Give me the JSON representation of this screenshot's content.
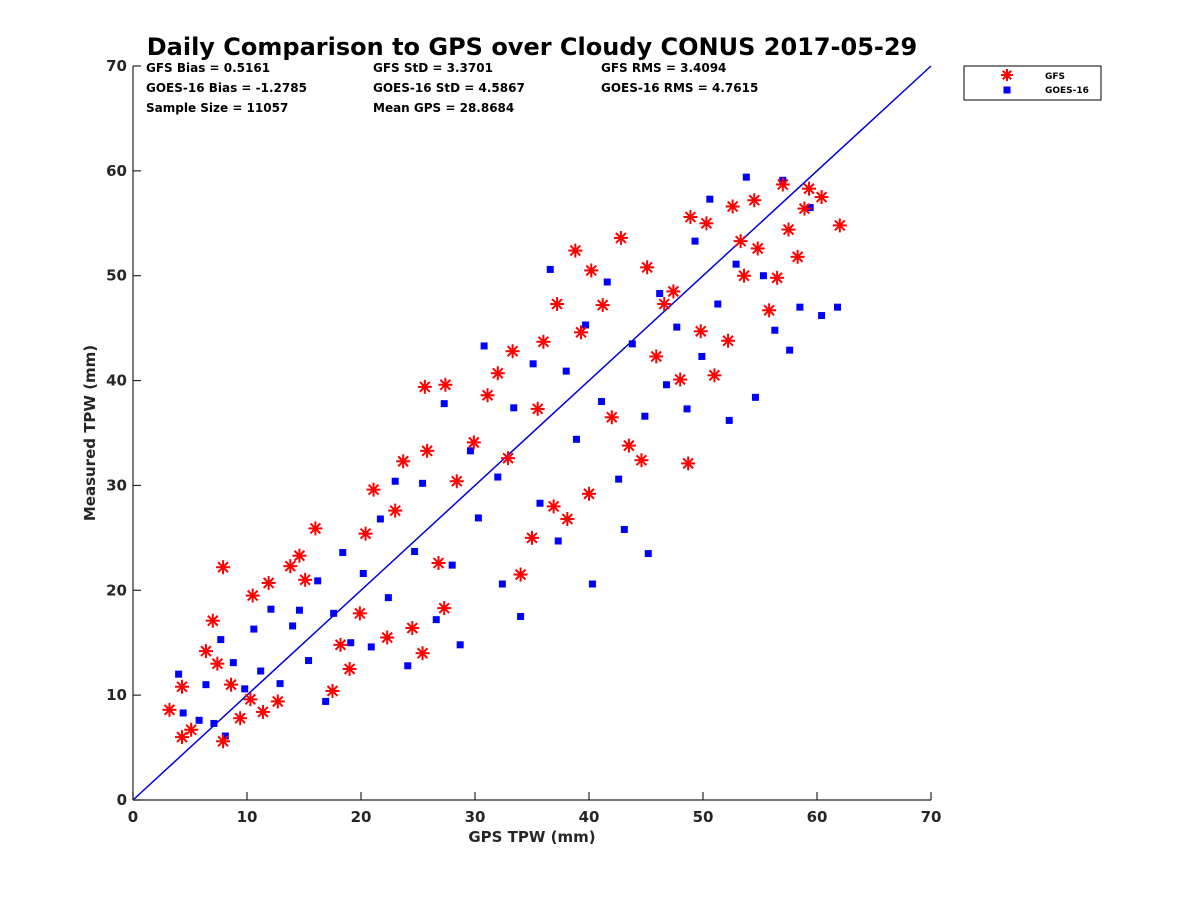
{
  "chart_data": {
    "type": "scatter",
    "title": "Daily Comparison to GPS over Cloudy CONUS 2017-05-29",
    "xlabel": "GPS TPW (mm)",
    "ylabel": "Measured TPW (mm)",
    "xlim": [
      0,
      70
    ],
    "ylim": [
      0,
      70
    ],
    "xticks": [
      0,
      10,
      20,
      30,
      40,
      50,
      60,
      70
    ],
    "yticks": [
      0,
      10,
      20,
      30,
      40,
      50,
      60,
      70
    ],
    "grid": false,
    "legend_position": "outside-top-right",
    "stats": {
      "gfs_bias": "GFS Bias = 0.5161",
      "gfs_std": "GFS StD = 3.3701",
      "gfs_rms": "GFS RMS = 3.4094",
      "goes_bias": "GOES-16 Bias = -1.2785",
      "goes_std": "GOES-16 StD = 4.5867",
      "goes_rms": "GOES-16 RMS = 4.7615",
      "sample_size": "Sample Size = 11057",
      "mean_gps": "Mean GPS = 28.8684"
    },
    "reference_line": {
      "x": [
        0,
        70
      ],
      "y": [
        0,
        70
      ],
      "color": "#0000dd"
    },
    "series": [
      {
        "name": "GFS",
        "marker": "asterisk",
        "color": "#ff0000",
        "points": [
          [
            3.2,
            8.6
          ],
          [
            4.3,
            10.8
          ],
          [
            4.3,
            6.0
          ],
          [
            5.1,
            6.7
          ],
          [
            6.4,
            14.2
          ],
          [
            7.0,
            17.1
          ],
          [
            7.4,
            13.0
          ],
          [
            7.9,
            22.2
          ],
          [
            7.9,
            5.6
          ],
          [
            8.6,
            11.0
          ],
          [
            9.4,
            7.8
          ],
          [
            10.3,
            9.6
          ],
          [
            10.5,
            19.5
          ],
          [
            11.4,
            8.4
          ],
          [
            11.9,
            20.7
          ],
          [
            12.7,
            9.4
          ],
          [
            13.8,
            22.3
          ],
          [
            14.6,
            23.3
          ],
          [
            15.1,
            21.0
          ],
          [
            16.0,
            25.9
          ],
          [
            17.5,
            10.4
          ],
          [
            18.2,
            14.8
          ],
          [
            19.0,
            12.5
          ],
          [
            19.9,
            17.8
          ],
          [
            20.4,
            25.4
          ],
          [
            21.1,
            29.6
          ],
          [
            22.3,
            15.5
          ],
          [
            23.0,
            27.6
          ],
          [
            23.7,
            32.3
          ],
          [
            24.5,
            16.4
          ],
          [
            25.4,
            14.0
          ],
          [
            25.6,
            39.4
          ],
          [
            25.8,
            33.3
          ],
          [
            26.8,
            22.6
          ],
          [
            27.3,
            18.3
          ],
          [
            27.4,
            39.6
          ],
          [
            28.4,
            30.4
          ],
          [
            29.9,
            34.1
          ],
          [
            31.1,
            38.6
          ],
          [
            32.0,
            40.7
          ],
          [
            32.9,
            32.6
          ],
          [
            33.3,
            42.8
          ],
          [
            34.0,
            21.5
          ],
          [
            35.0,
            25.0
          ],
          [
            35.5,
            37.3
          ],
          [
            36.0,
            43.7
          ],
          [
            36.9,
            28.0
          ],
          [
            37.2,
            47.3
          ],
          [
            38.1,
            26.8
          ],
          [
            38.8,
            52.4
          ],
          [
            39.3,
            44.6
          ],
          [
            40.0,
            29.2
          ],
          [
            40.2,
            50.5
          ],
          [
            41.2,
            47.2
          ],
          [
            42.0,
            36.5
          ],
          [
            42.8,
            53.6
          ],
          [
            43.5,
            33.8
          ],
          [
            44.6,
            32.4
          ],
          [
            45.1,
            50.8
          ],
          [
            45.9,
            42.3
          ],
          [
            46.6,
            47.3
          ],
          [
            47.4,
            48.5
          ],
          [
            48.0,
            40.1
          ],
          [
            48.7,
            32.1
          ],
          [
            48.9,
            55.6
          ],
          [
            49.8,
            44.7
          ],
          [
            50.3,
            55.0
          ],
          [
            51.0,
            40.5
          ],
          [
            52.2,
            43.8
          ],
          [
            52.6,
            56.6
          ],
          [
            53.3,
            53.3
          ],
          [
            53.6,
            50.0
          ],
          [
            54.5,
            57.2
          ],
          [
            54.8,
            52.6
          ],
          [
            55.8,
            46.7
          ],
          [
            56.5,
            49.8
          ],
          [
            57.0,
            58.7
          ],
          [
            57.5,
            54.4
          ],
          [
            58.3,
            51.8
          ],
          [
            58.9,
            56.4
          ],
          [
            59.3,
            58.3
          ],
          [
            60.4,
            57.5
          ],
          [
            62.0,
            54.8
          ]
        ]
      },
      {
        "name": "GOES-16",
        "marker": "square",
        "color": "#0000ff",
        "points": [
          [
            4.0,
            12.0
          ],
          [
            4.4,
            8.3
          ],
          [
            5.8,
            7.6
          ],
          [
            6.4,
            11.0
          ],
          [
            7.1,
            7.3
          ],
          [
            7.7,
            15.3
          ],
          [
            8.1,
            6.1
          ],
          [
            8.8,
            13.1
          ],
          [
            9.8,
            10.6
          ],
          [
            10.6,
            16.3
          ],
          [
            11.2,
            12.3
          ],
          [
            12.1,
            18.2
          ],
          [
            12.9,
            11.1
          ],
          [
            14.0,
            16.6
          ],
          [
            14.6,
            18.1
          ],
          [
            15.4,
            13.3
          ],
          [
            16.2,
            20.9
          ],
          [
            16.9,
            9.4
          ],
          [
            17.6,
            17.8
          ],
          [
            18.4,
            23.6
          ],
          [
            19.1,
            15.0
          ],
          [
            20.2,
            21.6
          ],
          [
            20.9,
            14.6
          ],
          [
            21.7,
            26.8
          ],
          [
            22.4,
            19.3
          ],
          [
            23.0,
            30.4
          ],
          [
            24.1,
            12.8
          ],
          [
            24.7,
            23.7
          ],
          [
            25.4,
            30.2
          ],
          [
            26.6,
            17.2
          ],
          [
            27.3,
            37.8
          ],
          [
            28.0,
            22.4
          ],
          [
            28.7,
            14.8
          ],
          [
            29.6,
            33.3
          ],
          [
            30.3,
            26.9
          ],
          [
            30.8,
            43.3
          ],
          [
            32.0,
            30.8
          ],
          [
            32.4,
            20.6
          ],
          [
            33.4,
            37.4
          ],
          [
            34.0,
            17.5
          ],
          [
            35.1,
            41.6
          ],
          [
            35.7,
            28.3
          ],
          [
            36.6,
            50.6
          ],
          [
            37.3,
            24.7
          ],
          [
            38.0,
            40.9
          ],
          [
            38.9,
            34.4
          ],
          [
            39.7,
            45.3
          ],
          [
            40.3,
            20.6
          ],
          [
            41.1,
            38.0
          ],
          [
            41.6,
            49.4
          ],
          [
            42.6,
            30.6
          ],
          [
            43.1,
            25.8
          ],
          [
            43.8,
            43.5
          ],
          [
            44.9,
            36.6
          ],
          [
            45.2,
            23.5
          ],
          [
            46.2,
            48.3
          ],
          [
            46.8,
            39.6
          ],
          [
            47.7,
            45.1
          ],
          [
            48.6,
            37.3
          ],
          [
            49.3,
            53.3
          ],
          [
            49.9,
            42.3
          ],
          [
            50.6,
            57.3
          ],
          [
            51.3,
            47.3
          ],
          [
            52.3,
            36.2
          ],
          [
            52.9,
            51.1
          ],
          [
            53.8,
            59.4
          ],
          [
            54.6,
            38.4
          ],
          [
            55.3,
            50.0
          ],
          [
            56.3,
            44.8
          ],
          [
            57.0,
            59.1
          ],
          [
            57.6,
            42.9
          ],
          [
            58.5,
            47.0
          ],
          [
            59.4,
            56.5
          ],
          [
            60.4,
            46.2
          ],
          [
            61.8,
            47.0
          ]
        ]
      }
    ]
  }
}
